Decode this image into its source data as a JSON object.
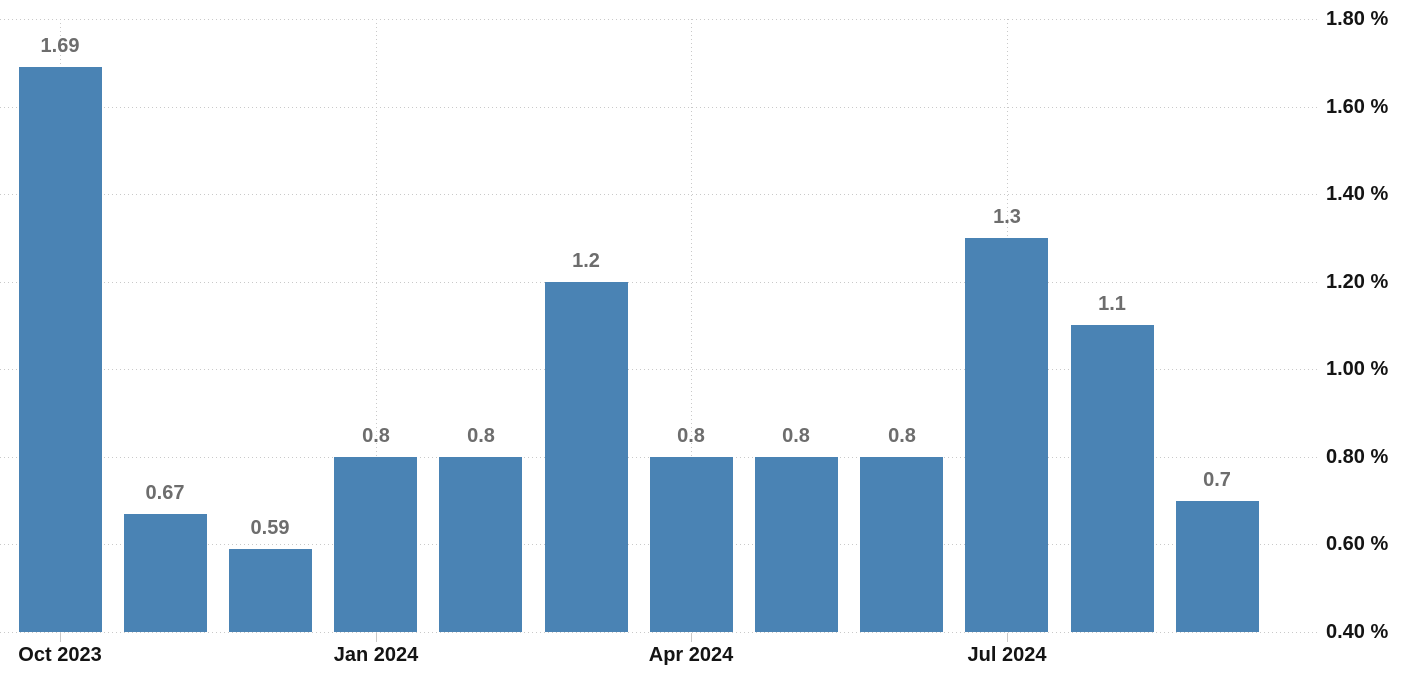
{
  "chart_data": {
    "type": "bar",
    "title": "",
    "unit": "%",
    "categories": [
      "Oct 2023",
      "",
      "",
      "Jan 2024",
      "",
      "",
      "Apr 2024",
      "",
      "",
      "Jul 2024",
      "",
      ""
    ],
    "values": [
      1.69,
      0.67,
      0.59,
      0.8,
      0.8,
      1.2,
      0.8,
      0.8,
      0.8,
      1.3,
      1.1,
      0.7
    ],
    "bar_labels": [
      "1.69",
      "0.67",
      "0.59",
      "0.8",
      "0.8",
      "1.2",
      "0.8",
      "0.8",
      "0.8",
      "1.3",
      "1.1",
      "0.7"
    ],
    "y_axis": {
      "side": "right",
      "min": 0.4,
      "max": 1.8,
      "step": 0.2,
      "tick_values": [
        0.4,
        0.6,
        0.8,
        1.0,
        1.2,
        1.4,
        1.6,
        1.8
      ],
      "tick_labels": [
        "0.40 %",
        "0.60 %",
        "0.80 %",
        "1.00 %",
        "1.20 %",
        "1.40 %",
        "1.60 %",
        "1.80 %"
      ]
    },
    "x_axis": {
      "tick_indices": [
        0,
        3,
        6,
        9
      ],
      "tick_labels": [
        "Oct 2023",
        "Jan 2024",
        "Apr 2024",
        "Jul 2024"
      ]
    },
    "grid": {
      "style": "dotted",
      "horizontal_lines": true,
      "vertical_lines_at_labeled_ticks": true
    },
    "colors": {
      "bar": "#4A83B4",
      "grid": "#C9C9C9",
      "data_label": "#6D6D6D",
      "axis_label": "#141414",
      "background": "#FFFFFF"
    },
    "legend": {
      "visible": false
    }
  }
}
